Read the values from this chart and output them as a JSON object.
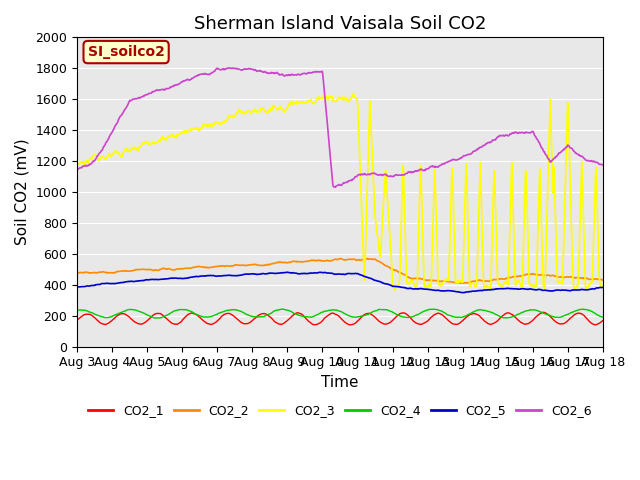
{
  "title": "Sherman Island Vaisala Soil CO2",
  "xlabel": "Time",
  "ylabel": "Soil CO2 (mV)",
  "ylim": [
    0,
    2000
  ],
  "xlim": [
    0,
    15
  ],
  "xtick_labels": [
    "Aug 3",
    "Aug 4",
    "Aug 5",
    "Aug 6",
    "Aug 7",
    "Aug 8",
    "Aug 9",
    "Aug 10",
    "Aug 11",
    "Aug 12",
    "Aug 13",
    "Aug 14",
    "Aug 15",
    "Aug 16",
    "Aug 17",
    "Aug 18"
  ],
  "legend_label": "SI_soilco2",
  "series_names": [
    "CO2_1",
    "CO2_2",
    "CO2_3",
    "CO2_4",
    "CO2_5",
    "CO2_6"
  ],
  "series_colors": [
    "#ff0000",
    "#ff8c00",
    "#ffff00",
    "#00cc00",
    "#0000cc",
    "#cc44cc"
  ],
  "background_color": "#e8e8e8",
  "title_fontsize": 13,
  "axis_label_fontsize": 11,
  "tick_fontsize": 9
}
